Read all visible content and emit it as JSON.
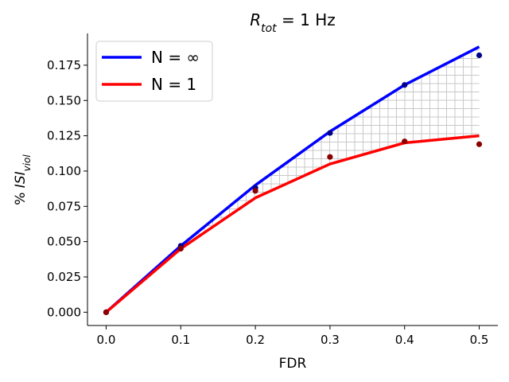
{
  "chart_data": {
    "type": "line",
    "title_main": "R",
    "title_sub": "tot",
    "title_rest": " = 1 Hz",
    "xlabel": "FDR",
    "ylabel_prefix": "% ",
    "ylabel_main": "ISI",
    "ylabel_sub": "viol",
    "xlim": [
      -0.025,
      0.525
    ],
    "ylim": [
      -0.0094,
      0.1975
    ],
    "x_ticks": [
      "0.0",
      "0.1",
      "0.2",
      "0.3",
      "0.4",
      "0.5"
    ],
    "x_tick_values": [
      0.0,
      0.1,
      0.2,
      0.3,
      0.4,
      0.5
    ],
    "y_ticks": [
      "0.000",
      "0.025",
      "0.050",
      "0.075",
      "0.100",
      "0.125",
      "0.150",
      "0.175"
    ],
    "y_tick_values": [
      0.0,
      0.025,
      0.05,
      0.075,
      0.1,
      0.125,
      0.15,
      0.175
    ],
    "legend_position": "top-left",
    "grid": false,
    "hatch_between_series": true,
    "series": [
      {
        "name": "N = ∞",
        "color": "#0000ff",
        "x": [
          0.0,
          0.1,
          0.2,
          0.3,
          0.4,
          0.5
        ],
        "y": [
          0.0,
          0.047,
          0.09,
          0.128,
          0.161,
          0.188
        ]
      },
      {
        "name": "N = 1",
        "color": "#ff0000",
        "x": [
          0.0,
          0.1,
          0.2,
          0.3,
          0.4,
          0.5
        ],
        "y": [
          0.0,
          0.045,
          0.081,
          0.105,
          0.12,
          0.125
        ]
      }
    ],
    "points": [
      {
        "color": "#00008b",
        "x": [
          0.0,
          0.1,
          0.2,
          0.3,
          0.4,
          0.5
        ],
        "y": [
          0.0,
          0.047,
          0.088,
          0.127,
          0.161,
          0.182
        ]
      },
      {
        "color": "#8b0000",
        "x": [
          0.0,
          0.1,
          0.2,
          0.3,
          0.4,
          0.5
        ],
        "y": [
          0.0,
          0.045,
          0.086,
          0.11,
          0.121,
          0.119
        ]
      }
    ]
  }
}
